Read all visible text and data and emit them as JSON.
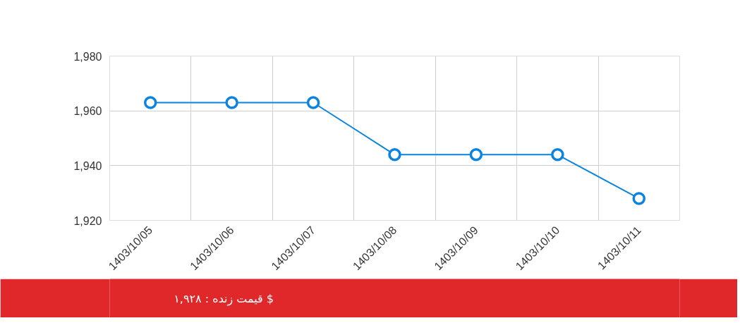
{
  "chart_data": {
    "type": "line",
    "categories": [
      "1403/10/05",
      "1403/10/06",
      "1403/10/07",
      "1403/10/08",
      "1403/10/09",
      "1403/10/10",
      "1403/10/11"
    ],
    "series": [
      {
        "color": "#0a84e0",
        "values": [
          1963,
          1963,
          1963,
          1944,
          1944,
          1944,
          1928
        ]
      }
    ],
    "ylim": [
      1920,
      1980
    ],
    "yticks": [
      {
        "value": 1920,
        "label": "1,920"
      },
      {
        "value": 1940,
        "label": "1,940"
      },
      {
        "value": 1960,
        "label": "1,960"
      },
      {
        "value": 1980,
        "label": "1,980"
      }
    ],
    "grid": true,
    "marker": "circle",
    "line_style": "solid",
    "annotations": [
      "قیمت زنده : ۱,۹۲۸ $"
    ]
  }
}
